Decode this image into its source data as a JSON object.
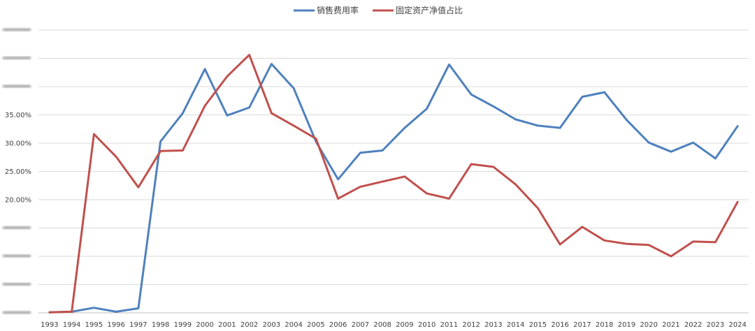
{
  "chart_data": {
    "type": "line",
    "title": "",
    "xlabel": "",
    "ylabel": "",
    "legend_position": "top",
    "grid": true,
    "ylim": [
      0,
      50
    ],
    "yticks": [
      {
        "value": 0,
        "label": "",
        "visible": false
      },
      {
        "value": 5,
        "label": "",
        "visible": false
      },
      {
        "value": 10,
        "label": "",
        "visible": false
      },
      {
        "value": 15,
        "label": "",
        "visible": false
      },
      {
        "value": 20,
        "label": "20.00%",
        "visible": true
      },
      {
        "value": 25,
        "label": "25.00%",
        "visible": true
      },
      {
        "value": 30,
        "label": "30.00%",
        "visible": true
      },
      {
        "value": 35,
        "label": "35.00%",
        "visible": true
      },
      {
        "value": 40,
        "label": "",
        "visible": false
      },
      {
        "value": 45,
        "label": "",
        "visible": false
      },
      {
        "value": 50,
        "label": "",
        "visible": false
      }
    ],
    "categories": [
      "1993",
      "1994",
      "1995",
      "1996",
      "1997",
      "1998",
      "1999",
      "2000",
      "2001",
      "2002",
      "2003",
      "2004",
      "2005",
      "2006",
      "2007",
      "2008",
      "2009",
      "2010",
      "2011",
      "2012",
      "2013",
      "2014",
      "2015",
      "2016",
      "2017",
      "2018",
      "2019",
      "2020",
      "2021",
      "2022",
      "2023",
      "2024"
    ],
    "series": [
      {
        "name": "销售费用率",
        "color": "#4f81bd",
        "values": [
          0.1,
          0.2,
          0.9,
          0.2,
          0.8,
          30.3,
          35.3,
          43.1,
          34.9,
          36.3,
          44.0,
          39.7,
          30.3,
          23.6,
          28.3,
          28.7,
          32.7,
          36.1,
          43.9,
          38.6,
          36.5,
          34.2,
          33.1,
          32.7,
          38.2,
          39.0,
          34.1,
          30.1,
          28.5,
          30.1,
          27.3,
          33.0
        ]
      },
      {
        "name": "固定资产净值占比",
        "color": "#c0504d",
        "values": [
          0.1,
          0.2,
          31.6,
          27.6,
          22.2,
          28.6,
          28.7,
          36.6,
          41.8,
          45.6,
          35.3,
          33.1,
          30.8,
          20.2,
          22.3,
          23.2,
          24.1,
          21.1,
          20.2,
          26.3,
          25.8,
          22.7,
          18.5,
          12.1,
          15.2,
          12.8,
          12.2,
          12.0,
          10.0,
          12.6,
          12.5,
          19.6
        ]
      }
    ]
  }
}
